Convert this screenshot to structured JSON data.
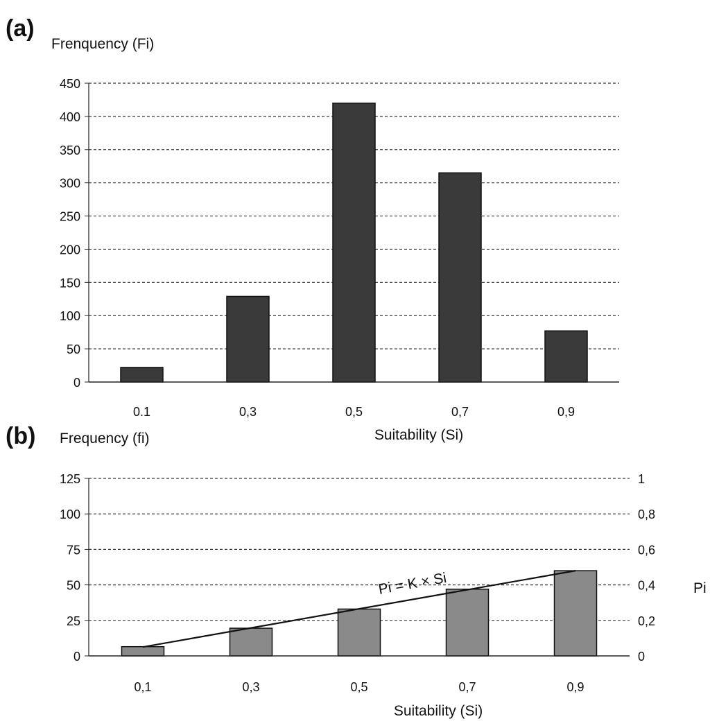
{
  "chart_data": [
    {
      "panel_label": "(a)",
      "type": "bar",
      "ylabel": "Frenquency (Fi)",
      "xlabel": "Suitability (Si)",
      "categories": [
        "0.1",
        "0,3",
        "0,5",
        "0,7",
        "0,9"
      ],
      "values": [
        22,
        129,
        420,
        315,
        77
      ],
      "ylim": [
        0,
        450
      ],
      "yticks": [
        "0",
        "50",
        "100",
        "150",
        "200",
        "250",
        "300",
        "350",
        "400",
        "450"
      ],
      "grid": "dashed horizontal",
      "bar_color": "#3a3a3a"
    },
    {
      "panel_label": "(b)",
      "type": "bar",
      "ylabel": "Frequency (fi)",
      "xlabel": "Suitability (Si)",
      "categories": [
        "0,1",
        "0,3",
        "0,5",
        "0,7",
        "0,9"
      ],
      "values": [
        6.5,
        19.5,
        33,
        47,
        60
      ],
      "ylim": [
        0,
        125
      ],
      "yticks": [
        "0",
        "25",
        "50",
        "75",
        "100",
        "125"
      ],
      "y2label": "Pi",
      "y2lim": [
        0,
        1
      ],
      "y2ticks": [
        "0",
        "0,2",
        "0,4",
        "0,6",
        "0,8",
        "1"
      ],
      "line": {
        "name": "Pi = K × Si",
        "y2_start": 0.05,
        "y2_end": 0.48
      },
      "grid": "dashed horizontal",
      "bar_color": "#8a8a8a"
    }
  ]
}
